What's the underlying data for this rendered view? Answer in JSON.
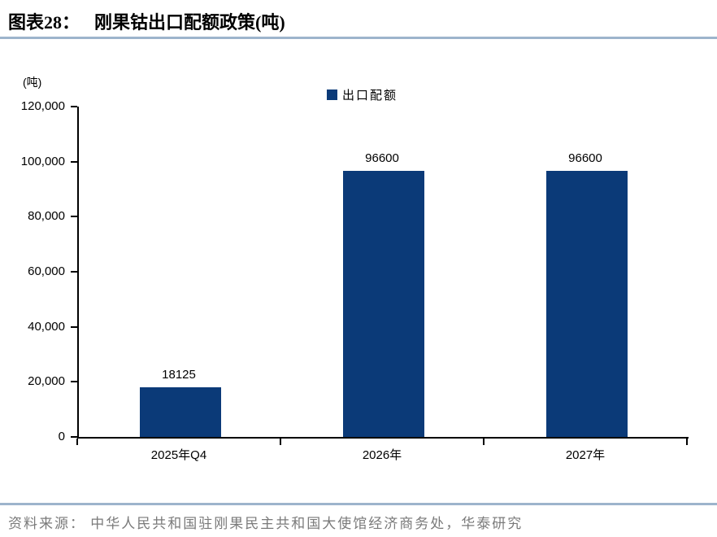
{
  "header": {
    "figure_label": "图表28：",
    "title": "刚果钴出口配额政策(吨)"
  },
  "chart_data": {
    "type": "bar",
    "title": "刚果钴出口配额政策(吨)",
    "unit_label": "(吨)",
    "legend": [
      "出口配额"
    ],
    "legend_position": "top-center",
    "categories": [
      "2025年Q4",
      "2026年",
      "2027年"
    ],
    "values": [
      18125,
      96600,
      96600
    ],
    "value_labels": [
      "18125",
      "96600",
      "96600"
    ],
    "ylim": [
      0,
      120000
    ],
    "ytick_step": 20000,
    "ytick_labels": [
      "0",
      "20,000",
      "40,000",
      "60,000",
      "80,000",
      "100,000",
      "120,000"
    ],
    "grid": false
  },
  "footer": {
    "source": "资料来源： 中华人民共和国驻刚果民主共和国大使馆经济商务处，华泰研究"
  },
  "colors": {
    "bar": "#0b3a78",
    "separator": "#9db4cc",
    "source_text": "#7a7a7a",
    "text": "#000000"
  }
}
